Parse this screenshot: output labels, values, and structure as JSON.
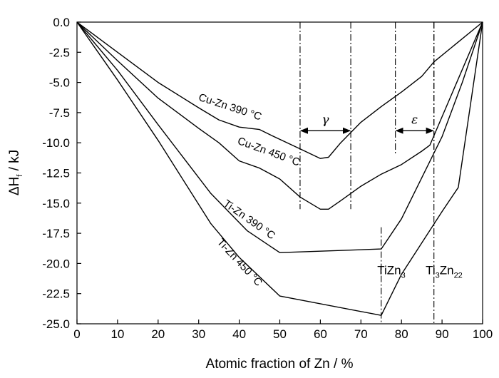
{
  "chart_data": {
    "type": "line",
    "title": "",
    "xlabel": "Atomic fraction of Zn / %",
    "ylabel": {
      "main": "ΔH",
      "sub": "f",
      "unit": " / kJ"
    },
    "xlim": [
      0,
      100
    ],
    "ylim": [
      -25,
      0
    ],
    "x_ticks": [
      0,
      10,
      20,
      30,
      40,
      50,
      60,
      70,
      80,
      90,
      100
    ],
    "y_ticks": [
      0.0,
      -2.5,
      -5.0,
      -7.5,
      -10.0,
      -12.5,
      -15.0,
      -17.5,
      -20.0,
      -22.5,
      -25.0
    ],
    "x_tick_labels": [
      "0",
      "10",
      "20",
      "30",
      "40",
      "50",
      "60",
      "70",
      "80",
      "90",
      "100"
    ],
    "y_tick_labels": [
      "0.0",
      "-2.5",
      "-5.0",
      "-7.5",
      "-10.0",
      "-12.5",
      "-15.0",
      "-17.5",
      "-20.0",
      "-22.5",
      "-25.0"
    ],
    "grid": false,
    "series": [
      {
        "name": "Cu-Zn 390 °C",
        "color": "#000000",
        "x": [
          0,
          10,
          20,
          30,
          35,
          40,
          45,
          48,
          55,
          60,
          62,
          65,
          70,
          75,
          80,
          85,
          88,
          100
        ],
        "y": [
          0,
          -2.5,
          -5.0,
          -7.1,
          -8.1,
          -8.7,
          -8.9,
          -9.4,
          -10.5,
          -11.3,
          -11.2,
          -10.0,
          -8.3,
          -7.0,
          -5.8,
          -4.5,
          -3.3,
          0
        ]
      },
      {
        "name": "Cu-Zn 450 °C",
        "color": "#000000",
        "x": [
          0,
          10,
          20,
          30,
          35,
          40,
          45,
          50,
          55,
          60,
          62,
          65,
          70,
          75,
          80,
          85,
          87,
          100
        ],
        "y": [
          0,
          -3.2,
          -6.3,
          -8.8,
          -10.0,
          -11.5,
          -12.1,
          -13.0,
          -14.5,
          -15.5,
          -15.5,
          -14.8,
          -13.6,
          -12.6,
          -11.8,
          -10.7,
          -10.2,
          0
        ]
      },
      {
        "name": "Ti-Zn 390 °C",
        "color": "#000000",
        "x": [
          0,
          10,
          20,
          33,
          42,
          50,
          75,
          80,
          90,
          95,
          100
        ],
        "y": [
          0,
          -4.0,
          -8.5,
          -14.2,
          -17.3,
          -19.1,
          -18.8,
          -16.3,
          -9.5,
          -5.0,
          0
        ]
      },
      {
        "name": "Ti-Zn 450 °C",
        "color": "#000000",
        "x": [
          0,
          10,
          20,
          33,
          40,
          50,
          75,
          80,
          90,
          94,
          100
        ],
        "y": [
          0,
          -4.8,
          -9.8,
          -16.7,
          -19.5,
          -22.7,
          -24.3,
          -20.9,
          -15.7,
          -13.7,
          0
        ]
      }
    ],
    "curve_labels": [
      {
        "series": "Cu-Zn 390 °C",
        "text": "Cu-Zn 390 °C",
        "x": 37.5,
        "y": -7.3,
        "angle": 18
      },
      {
        "series": "Cu-Zn 450 °C",
        "text": "Cu-Zn 450 °C",
        "x": 47.0,
        "y": -11.0,
        "angle": 20
      },
      {
        "series": "Ti-Zn 390 °C",
        "text": "Ti-Zn 390 °C",
        "x": 42.0,
        "y": -16.6,
        "angle": 35
      },
      {
        "series": "Ti-Zn 450 °C",
        "text": "Ti-Zn 450 °C",
        "x": 39.5,
        "y": -20.1,
        "angle": 47
      }
    ],
    "phase_regions": [
      {
        "symbol": "γ",
        "x_from": 55,
        "x_to": 67.5,
        "y_from": 0,
        "y_to": -15.5,
        "arrow_y": -9.0
      },
      {
        "symbol": "ε",
        "x_from": 78.5,
        "x_to": 88,
        "y_from": 0,
        "y_to": -11.0,
        "arrow_y": -9.0
      }
    ],
    "compound_lines": [
      {
        "main": "TiZn",
        "sub": "3",
        "x": 75,
        "y_top": -17.0,
        "y_bottom": -25,
        "label_x": 77.5,
        "label_y": -20.9
      },
      {
        "main": "Ti",
        "sub": "3",
        "main2": "Zn",
        "sub2": "22",
        "x": 88,
        "y_top": 0,
        "y_bottom": -25,
        "label_x": 90.5,
        "label_y": -20.9
      }
    ]
  }
}
